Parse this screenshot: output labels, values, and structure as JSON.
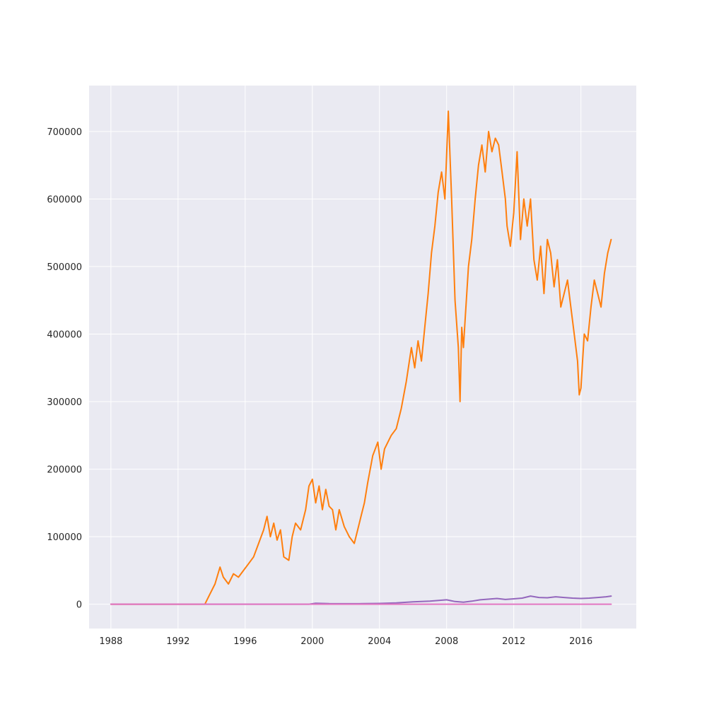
{
  "chart_data": {
    "type": "line",
    "title": "",
    "xlabel": "",
    "ylabel": "",
    "xlim": [
      1986.7,
      2019.3
    ],
    "ylim": [
      -36000,
      768000
    ],
    "x_ticks": [
      1988,
      1992,
      1996,
      2000,
      2004,
      2008,
      2012,
      2016
    ],
    "y_ticks": [
      0,
      100000,
      200000,
      300000,
      400000,
      500000,
      600000,
      700000
    ],
    "grid": true,
    "legend": "none",
    "colors": {
      "plot_background": "#eaeaf2",
      "grid": "#ffffff",
      "orange": "#ff7f0e",
      "purple": "#9467bd",
      "pink": "#e377c2"
    },
    "series": [
      {
        "color": "#ff7f0e",
        "x": [
          1988.0,
          1993.6,
          1993.9,
          1994.2,
          1994.5,
          1994.7,
          1995.0,
          1995.3,
          1995.6,
          1995.9,
          1996.2,
          1996.5,
          1996.8,
          1997.1,
          1997.3,
          1997.5,
          1997.7,
          1997.9,
          1998.1,
          1998.3,
          1998.6,
          1998.8,
          1999.0,
          1999.3,
          1999.6,
          1999.8,
          2000.0,
          2000.2,
          2000.4,
          2000.6,
          2000.8,
          2001.0,
          2001.2,
          2001.4,
          2001.6,
          2001.9,
          2002.2,
          2002.5,
          2002.7,
          2002.9,
          2003.1,
          2003.3,
          2003.6,
          2003.9,
          2004.1,
          2004.3,
          2004.5,
          2004.7,
          2005.0,
          2005.3,
          2005.6,
          2005.9,
          2006.1,
          2006.3,
          2006.5,
          2006.7,
          2006.9,
          2007.1,
          2007.3,
          2007.5,
          2007.7,
          2007.9,
          2008.1,
          2008.3,
          2008.5,
          2008.7,
          2008.8,
          2008.9,
          2009.0,
          2009.1,
          2009.3,
          2009.5,
          2009.7,
          2009.9,
          2010.1,
          2010.3,
          2010.5,
          2010.7,
          2010.9,
          2011.1,
          2011.3,
          2011.5,
          2011.6,
          2011.8,
          2012.0,
          2012.2,
          2012.4,
          2012.6,
          2012.8,
          2013.0,
          2013.2,
          2013.4,
          2013.6,
          2013.8,
          2014.0,
          2014.2,
          2014.4,
          2014.6,
          2014.8,
          2015.0,
          2015.2,
          2015.4,
          2015.6,
          2015.8,
          2015.9,
          2016.0,
          2016.1,
          2016.2,
          2016.4,
          2016.6,
          2016.8,
          2017.0,
          2017.2,
          2017.4,
          2017.6,
          2017.8
        ],
        "y": [
          0,
          0,
          15000,
          30000,
          55000,
          40000,
          30000,
          45000,
          40000,
          50000,
          60000,
          70000,
          90000,
          110000,
          130000,
          100000,
          120000,
          95000,
          110000,
          70000,
          65000,
          100000,
          120000,
          110000,
          140000,
          175000,
          185000,
          150000,
          175000,
          140000,
          170000,
          145000,
          140000,
          110000,
          140000,
          115000,
          100000,
          90000,
          110000,
          130000,
          150000,
          180000,
          220000,
          240000,
          200000,
          230000,
          240000,
          250000,
          260000,
          290000,
          330000,
          380000,
          350000,
          390000,
          360000,
          410000,
          460000,
          520000,
          560000,
          610000,
          640000,
          600000,
          730000,
          600000,
          450000,
          380000,
          300000,
          410000,
          380000,
          420000,
          500000,
          540000,
          600000,
          650000,
          680000,
          640000,
          700000,
          670000,
          690000,
          680000,
          640000,
          600000,
          560000,
          530000,
          580000,
          670000,
          540000,
          600000,
          560000,
          600000,
          510000,
          480000,
          530000,
          460000,
          540000,
          520000,
          470000,
          510000,
          440000,
          460000,
          480000,
          440000,
          400000,
          360000,
          310000,
          320000,
          360000,
          400000,
          390000,
          440000,
          480000,
          460000,
          440000,
          490000,
          520000,
          540000
        ]
      },
      {
        "color": "#9467bd",
        "x": [
          1988.0,
          1999.8,
          2000.2,
          2001.0,
          2002.0,
          2003.0,
          2004.0,
          2005.0,
          2006.0,
          2007.0,
          2008.0,
          2008.5,
          2009.0,
          2009.5,
          2010.0,
          2011.0,
          2011.5,
          2012.0,
          2012.5,
          2013.0,
          2013.5,
          2014.0,
          2014.5,
          2015.0,
          2015.5,
          2016.0,
          2016.5,
          2017.0,
          2017.5,
          2017.8
        ],
        "y": [
          0,
          0,
          1500,
          800,
          700,
          800,
          1200,
          2000,
          3500,
          4500,
          6500,
          4000,
          3000,
          4500,
          6500,
          8500,
          7000,
          8000,
          9000,
          12000,
          10000,
          9500,
          11000,
          10000,
          9000,
          8500,
          9000,
          10000,
          11000,
          12000
        ]
      },
      {
        "color": "#e377c2",
        "x": [
          1988.0,
          2017.8
        ],
        "y": [
          0,
          0
        ]
      }
    ]
  }
}
